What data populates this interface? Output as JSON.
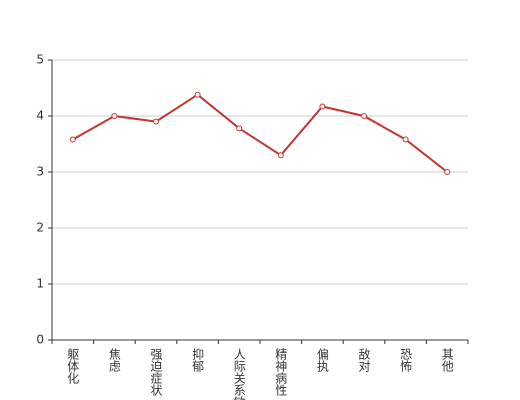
{
  "chart_data": {
    "type": "line",
    "categories": [
      "躯体化",
      "焦虑",
      "强迫症状",
      "抑郁",
      "人际关系敏感",
      "精神病性",
      "偏执",
      "敌对",
      "恐怖",
      "其他"
    ],
    "series": [
      {
        "name": "",
        "color": "#c23531",
        "values": [
          3.58,
          4.0,
          3.9,
          4.38,
          3.78,
          3.3,
          4.17,
          4.0,
          3.58,
          3.0
        ]
      }
    ],
    "ylim": [
      0,
      5
    ],
    "yticks": [
      0,
      1,
      2,
      3,
      4,
      5
    ],
    "grid": true
  }
}
